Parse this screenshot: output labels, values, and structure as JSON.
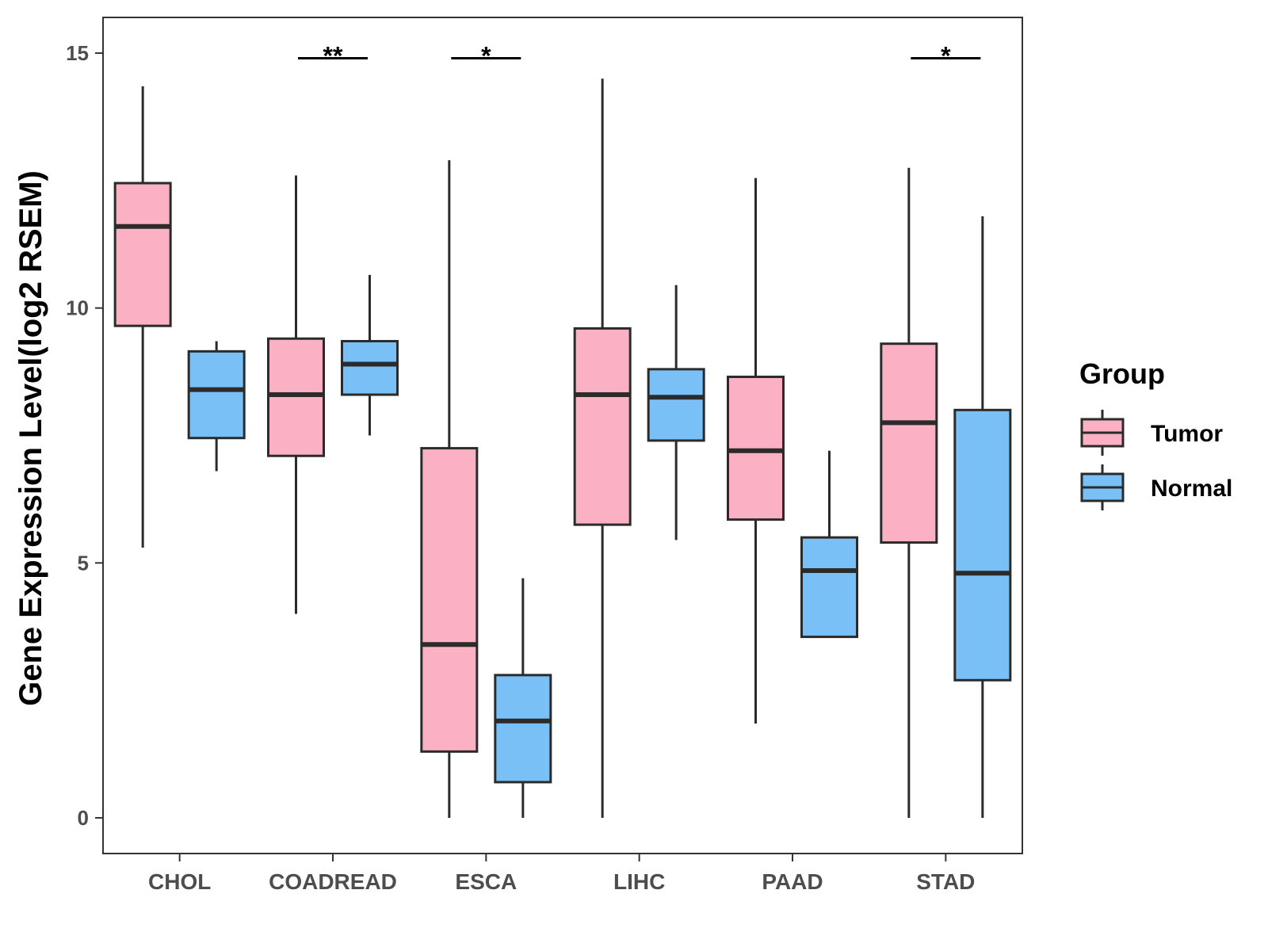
{
  "chart_data": {
    "type": "boxplot",
    "title": "",
    "xlabel": "",
    "ylabel": "Gene Expression Level(log2 RSEM)",
    "ylim": [
      -0.7,
      15.7
    ],
    "yticks": [
      0,
      5,
      10,
      15
    ],
    "grid": false,
    "legend": {
      "title": "Group",
      "placement": "right",
      "entries": [
        "Tumor",
        "Normal"
      ]
    },
    "colors": {
      "Tumor": "#fbb0c3",
      "Normal": "#79c0f7",
      "stroke": "#2b2b2b"
    },
    "categories": [
      "CHOL",
      "COADREAD",
      "ESCA",
      "LIHC",
      "PAAD",
      "STAD"
    ],
    "series": [
      {
        "name": "Tumor",
        "boxes": [
          {
            "min": 5.3,
            "q1": 9.65,
            "median": 11.6,
            "q3": 12.45,
            "max": 14.35
          },
          {
            "min": 4.0,
            "q1": 7.1,
            "median": 8.3,
            "q3": 9.4,
            "max": 12.6
          },
          {
            "min": 0.0,
            "q1": 1.3,
            "median": 3.4,
            "q3": 7.25,
            "max": 12.9
          },
          {
            "min": 0.0,
            "q1": 5.75,
            "median": 8.3,
            "q3": 9.6,
            "max": 14.5
          },
          {
            "min": 1.85,
            "q1": 5.85,
            "median": 7.2,
            "q3": 8.65,
            "max": 12.55
          },
          {
            "min": 0.0,
            "q1": 5.4,
            "median": 7.75,
            "q3": 9.3,
            "max": 12.75
          }
        ]
      },
      {
        "name": "Normal",
        "boxes": [
          {
            "min": 6.8,
            "q1": 7.45,
            "median": 8.4,
            "q3": 9.15,
            "max": 9.35
          },
          {
            "min": 7.5,
            "q1": 8.3,
            "median": 8.9,
            "q3": 9.35,
            "max": 10.65
          },
          {
            "min": 0.0,
            "q1": 0.7,
            "median": 1.9,
            "q3": 2.8,
            "max": 4.7
          },
          {
            "min": 5.45,
            "q1": 7.4,
            "median": 8.25,
            "q3": 8.8,
            "max": 10.45
          },
          {
            "min": 3.55,
            "q1": 3.55,
            "median": 4.85,
            "q3": 5.5,
            "max": 7.2
          },
          {
            "min": 0.0,
            "q1": 2.7,
            "median": 4.8,
            "q3": 8.0,
            "max": 11.8
          }
        ]
      }
    ],
    "significance": [
      {
        "category": "COADREAD",
        "label": "**",
        "y": 14.9
      },
      {
        "category": "ESCA",
        "label": "*",
        "y": 14.9
      },
      {
        "category": "STAD",
        "label": "*",
        "y": 14.9
      }
    ]
  }
}
